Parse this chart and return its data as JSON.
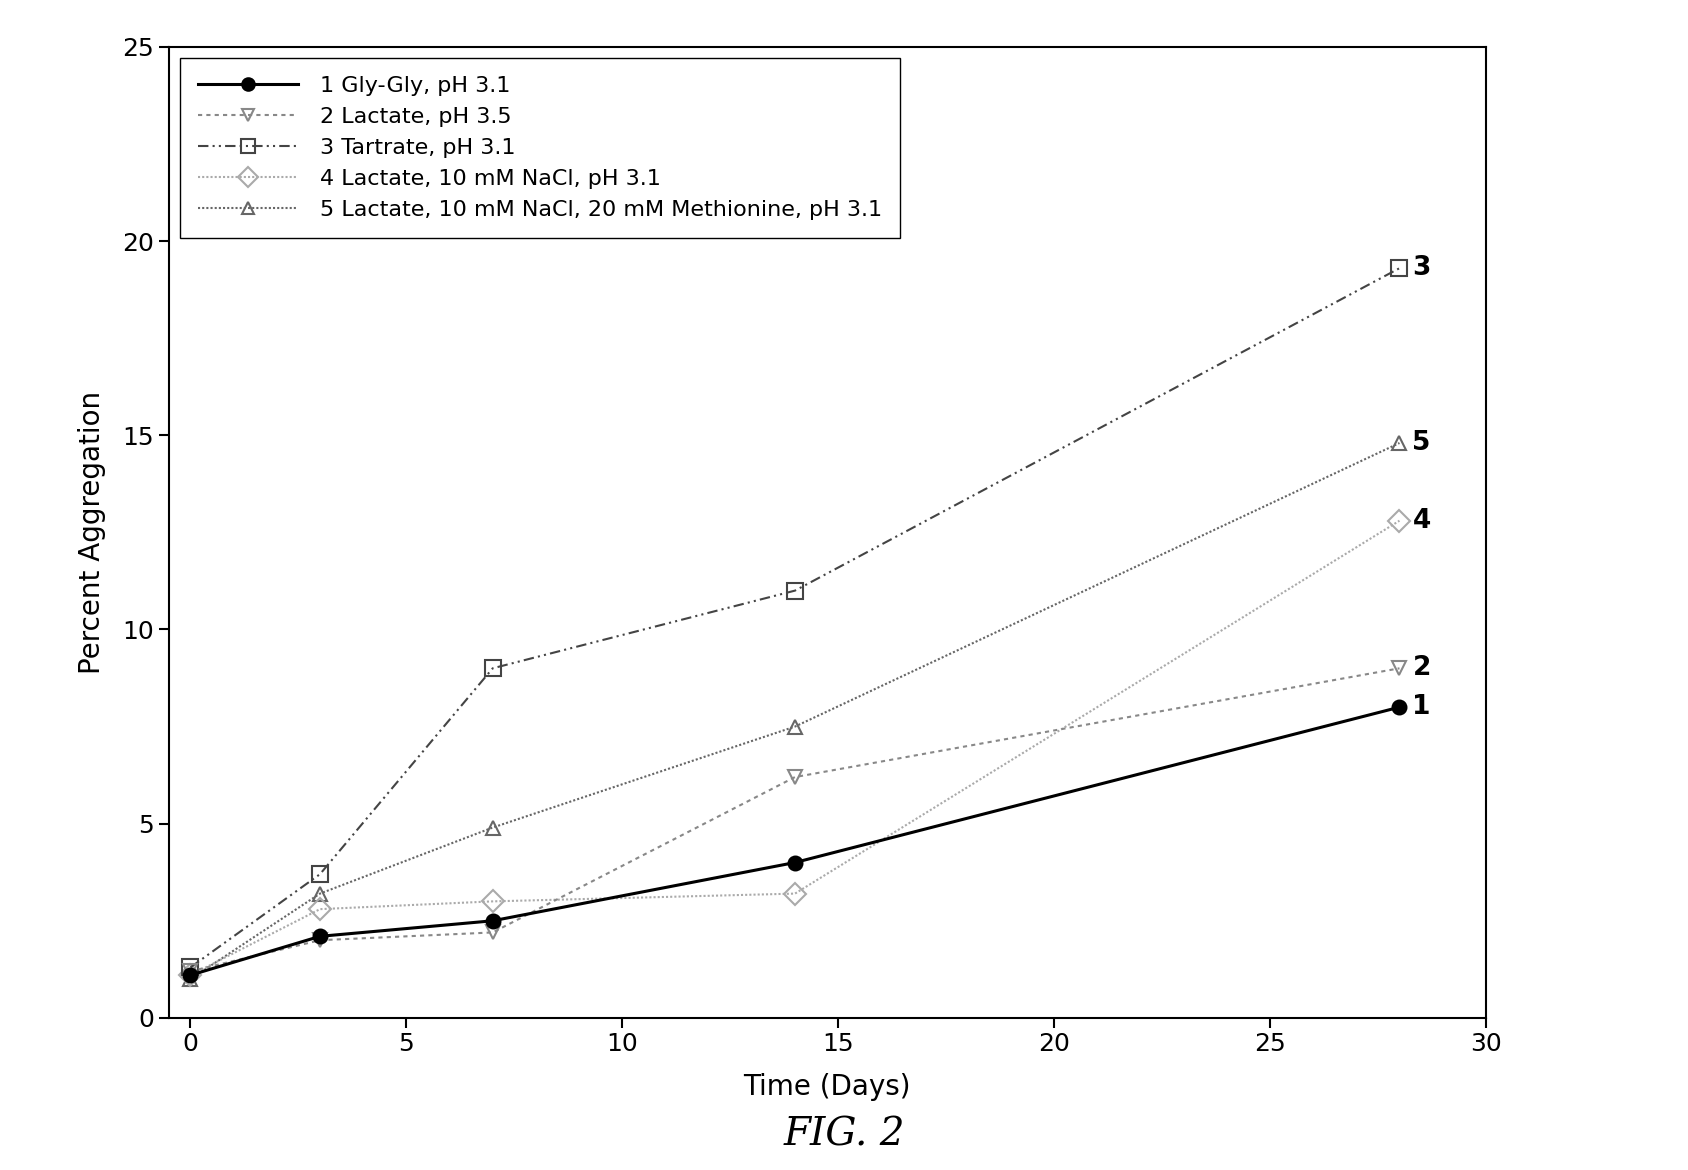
{
  "series": [
    {
      "label": "1 Gly-Gly, pH 3.1",
      "x": [
        0,
        3,
        7,
        14,
        28
      ],
      "y": [
        1.1,
        2.1,
        2.5,
        4.0,
        8.0
      ],
      "color": "#000000",
      "linewidth": 2.2,
      "marker": "o",
      "markersize": 10,
      "markerfacecolor": "#000000",
      "markeredgecolor": "#000000",
      "series_number": "1",
      "zorder": 5
    },
    {
      "label": "2 Lactate, pH 3.5",
      "x": [
        0,
        3,
        7,
        14,
        28
      ],
      "y": [
        1.2,
        2.0,
        2.2,
        6.2,
        9.0
      ],
      "color": "#888888",
      "linewidth": 1.5,
      "marker": "v",
      "markersize": 10,
      "markerfacecolor": "none",
      "markeredgecolor": "#888888",
      "series_number": "2",
      "zorder": 4
    },
    {
      "label": "3 Tartrate, pH 3.1",
      "x": [
        0,
        3,
        7,
        14,
        28
      ],
      "y": [
        1.3,
        3.7,
        9.0,
        11.0,
        19.3
      ],
      "color": "#444444",
      "linewidth": 1.5,
      "marker": "s",
      "markersize": 11,
      "markerfacecolor": "none",
      "markeredgecolor": "#444444",
      "series_number": "3",
      "zorder": 3
    },
    {
      "label": "4 Lactate, 10 mM NaCl, pH 3.1",
      "x": [
        0,
        3,
        7,
        14,
        28
      ],
      "y": [
        1.1,
        2.8,
        3.0,
        3.2,
        12.8
      ],
      "color": "#aaaaaa",
      "linewidth": 1.5,
      "marker": "D",
      "markersize": 11,
      "markerfacecolor": "none",
      "markeredgecolor": "#aaaaaa",
      "series_number": "4",
      "zorder": 2
    },
    {
      "label": "5 Lactate, 10 mM NaCl, 20 mM Methionine, pH 3.1",
      "x": [
        0,
        3,
        7,
        14,
        28
      ],
      "y": [
        1.0,
        3.2,
        4.9,
        7.5,
        14.8
      ],
      "color": "#666666",
      "linewidth": 1.5,
      "marker": "^",
      "markersize": 10,
      "markerfacecolor": "none",
      "markeredgecolor": "#666666",
      "series_number": "5",
      "zorder": 1
    }
  ],
  "xlabel": "Time (Days)",
  "ylabel": "Percent Aggregation",
  "xlim": [
    -0.5,
    30
  ],
  "ylim": [
    0,
    25
  ],
  "xticks": [
    0,
    5,
    10,
    15,
    20,
    25,
    30
  ],
  "yticks": [
    0,
    5,
    10,
    15,
    20,
    25
  ],
  "fig_caption": "FIG. 2",
  "background_color": "#ffffff",
  "label_fontsize": 20,
  "tick_fontsize": 18,
  "legend_fontsize": 16,
  "caption_fontsize": 28,
  "annot_fontsize": 19
}
